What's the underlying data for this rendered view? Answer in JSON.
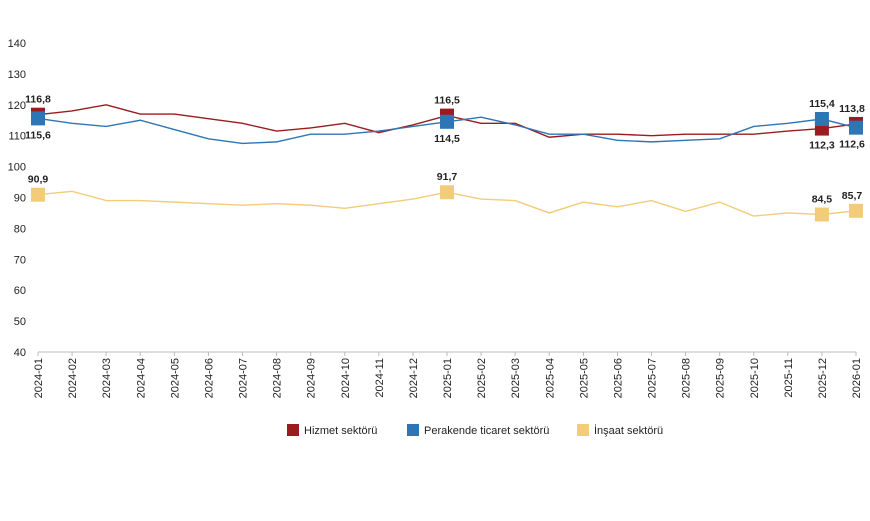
{
  "chart_data": {
    "type": "line",
    "categories": [
      "2024-01",
      "2024-02",
      "2024-03",
      "2024-04",
      "2024-05",
      "2024-06",
      "2024-07",
      "2024-08",
      "2024-09",
      "2024-10",
      "2024-11",
      "2024-12",
      "2025-01",
      "2025-02",
      "2025-03",
      "2025-04",
      "2025-05",
      "2025-06",
      "2025-07",
      "2025-08",
      "2025-09",
      "2025-10",
      "2025-11",
      "2025-12",
      "2026-01"
    ],
    "series": [
      {
        "name": "Hizmet sektörü",
        "color": "#9b1c1f",
        "values": [
          116.8,
          118,
          120,
          117,
          117,
          115.5,
          114,
          111.5,
          112.5,
          114,
          111,
          113.5,
          116.5,
          114,
          114,
          109.5,
          110.5,
          110.5,
          110,
          110.5,
          110.5,
          110.5,
          111.5,
          112.3,
          113.8
        ],
        "value_labels": [
          "116,8",
          null,
          null,
          null,
          null,
          null,
          null,
          null,
          null,
          null,
          null,
          null,
          "116,5",
          null,
          null,
          null,
          null,
          null,
          null,
          null,
          null,
          null,
          null,
          "112,3",
          "113,8"
        ]
      },
      {
        "name": "Perakende ticaret sektörü",
        "color": "#2e75b6",
        "values": [
          115.6,
          114,
          113,
          115,
          112,
          109,
          107.5,
          108,
          110.5,
          110.5,
          111.5,
          113,
          114.5,
          116,
          113.5,
          110.5,
          110.5,
          108.5,
          108,
          108.5,
          109,
          113,
          114,
          115.4,
          112.6
        ],
        "value_labels": [
          "115,6",
          null,
          null,
          null,
          null,
          null,
          null,
          null,
          null,
          null,
          null,
          null,
          "114,5",
          null,
          null,
          null,
          null,
          null,
          null,
          null,
          null,
          null,
          null,
          "115,4",
          "112,6"
        ]
      },
      {
        "name": "İnşaat sektörü",
        "color": "#f2cc7a",
        "values": [
          90.9,
          92,
          89,
          89,
          88.5,
          88,
          87.5,
          88,
          87.5,
          86.5,
          88,
          89.5,
          91.7,
          89.5,
          89,
          85,
          88.5,
          87,
          89,
          85.5,
          88.5,
          84,
          85,
          84.5,
          85.7
        ],
        "value_labels": [
          "90,9",
          null,
          null,
          null,
          null,
          null,
          null,
          null,
          null,
          null,
          null,
          null,
          "91,7",
          null,
          null,
          null,
          null,
          null,
          null,
          null,
          null,
          null,
          null,
          "84,5",
          "85,7"
        ]
      }
    ],
    "ylim": [
      40,
      140
    ],
    "yticks": [
      40,
      50,
      60,
      70,
      80,
      90,
      100,
      110,
      120,
      130,
      140
    ],
    "grid": false,
    "legend": "bottom"
  }
}
